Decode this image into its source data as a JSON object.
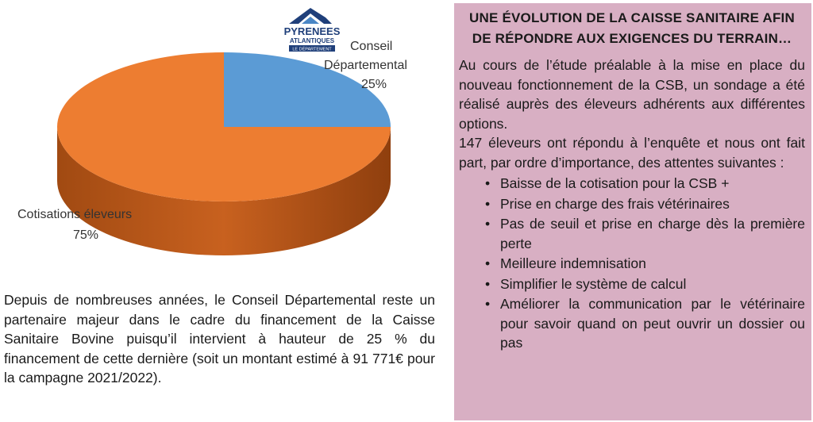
{
  "chart_data": {
    "type": "pie",
    "title": "",
    "slices": [
      {
        "label": "Conseil Départemental",
        "value": 25,
        "value_label": "25%",
        "color": "#5b9bd5"
      },
      {
        "label": "Cotisations éleveurs",
        "value": 75,
        "value_label": "75%",
        "color": "#ed7d31"
      }
    ],
    "style": "3d"
  },
  "logo": {
    "line1": "PYRENEES",
    "line2": "ATLANTIQUES",
    "line3": "LE DÉPARTEMENT",
    "color": "#1f3f7a"
  },
  "left_text": "Depuis de nombreuses années, le Conseil Départemental reste un partenaire majeur dans le cadre du financement de la Caisse Sanitaire Bovine puisqu’il intervient à hauteur de 25 % du financement de cette dernière (soit un montant estimé à 91 771€ pour la campagne 2021/2022).",
  "panel": {
    "title": "UNE ÉVOLUTION DE LA CAISSE SANITAIRE AFIN DE RÉPONDRE AUX EXIGENCES DU TERRAIN…",
    "p1": "Au cours de l’étude préalable à la mise en place du nouveau fonctionnement de la CSB, un sondage a été réalisé auprès des éleveurs adhérents aux différentes options.",
    "p2": "147 éleveurs ont répondu à l’enquête et nous ont fait part, par ordre d’importance, des attentes suivantes :",
    "items": [
      "Baisse de la cotisation pour la CSB +",
      "Prise en charge des frais vétérinaires",
      "Pas de seuil et prise en charge dès la première perte",
      "Meilleure indemnisation",
      "Simplifier le système de calcul",
      "Améliorer la communication par le vétérinaire pour savoir quand on peut ouvrir un dossier ou pas"
    ],
    "bg_color": "#d8afc3"
  }
}
